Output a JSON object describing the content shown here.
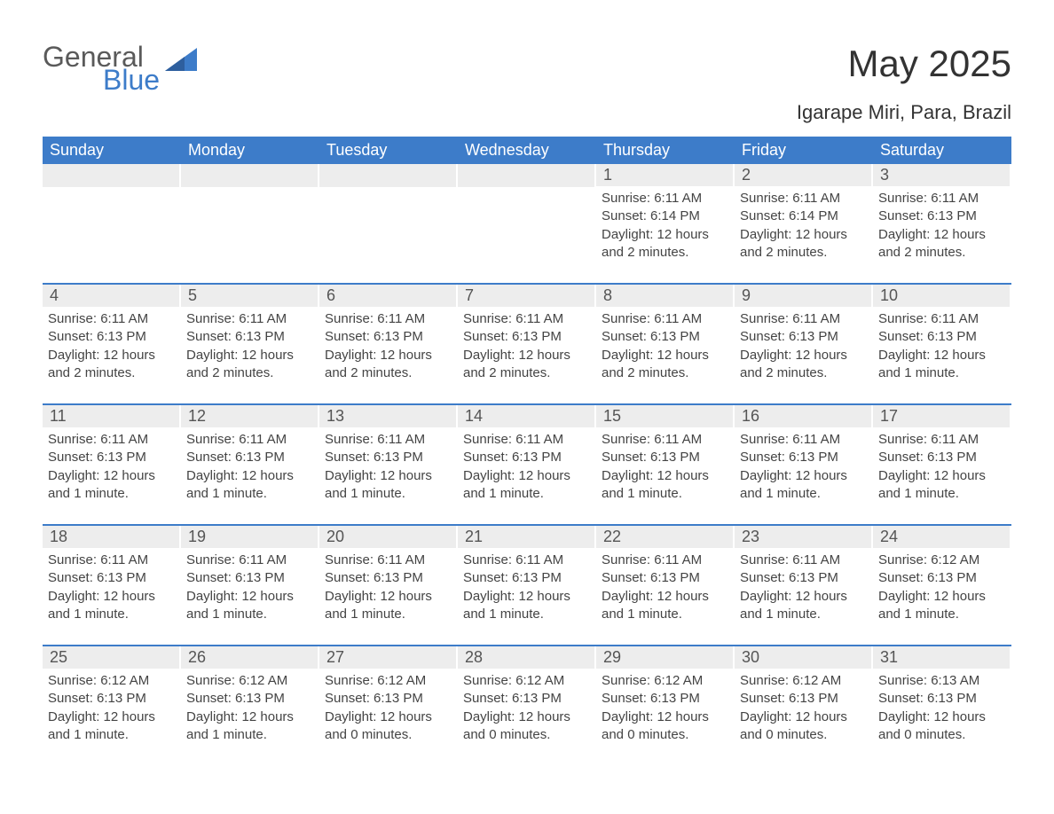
{
  "logo": {
    "word1": "General",
    "word2": "Blue"
  },
  "title": "May 2025",
  "subtitle": "Igarape Miri, Para, Brazil",
  "colors": {
    "header_bg": "#3d7cc9",
    "header_text": "#ffffff",
    "daynum_bg": "#ededed",
    "border": "#3d7cc9",
    "body_text": "#444444",
    "title_text": "#333333",
    "logo_gray": "#5a5a5a",
    "logo_blue": "#3d7cc9",
    "page_bg": "#ffffff"
  },
  "fonts": {
    "title_pt": 42,
    "subtitle_pt": 22,
    "weekday_pt": 18,
    "daynum_pt": 18,
    "body_pt": 15,
    "logo_pt": 32
  },
  "weekdays": [
    "Sunday",
    "Monday",
    "Tuesday",
    "Wednesday",
    "Thursday",
    "Friday",
    "Saturday"
  ],
  "label_sunrise": "Sunrise:",
  "label_sunset": "Sunset:",
  "label_daylight": "Daylight:",
  "weeks": [
    [
      {
        "blank": true
      },
      {
        "blank": true
      },
      {
        "blank": true
      },
      {
        "blank": true
      },
      {
        "num": "1",
        "sunrise": "6:11 AM",
        "sunset": "6:14 PM",
        "daylight": "12 hours and 2 minutes."
      },
      {
        "num": "2",
        "sunrise": "6:11 AM",
        "sunset": "6:14 PM",
        "daylight": "12 hours and 2 minutes."
      },
      {
        "num": "3",
        "sunrise": "6:11 AM",
        "sunset": "6:13 PM",
        "daylight": "12 hours and 2 minutes."
      }
    ],
    [
      {
        "num": "4",
        "sunrise": "6:11 AM",
        "sunset": "6:13 PM",
        "daylight": "12 hours and 2 minutes."
      },
      {
        "num": "5",
        "sunrise": "6:11 AM",
        "sunset": "6:13 PM",
        "daylight": "12 hours and 2 minutes."
      },
      {
        "num": "6",
        "sunrise": "6:11 AM",
        "sunset": "6:13 PM",
        "daylight": "12 hours and 2 minutes."
      },
      {
        "num": "7",
        "sunrise": "6:11 AM",
        "sunset": "6:13 PM",
        "daylight": "12 hours and 2 minutes."
      },
      {
        "num": "8",
        "sunrise": "6:11 AM",
        "sunset": "6:13 PM",
        "daylight": "12 hours and 2 minutes."
      },
      {
        "num": "9",
        "sunrise": "6:11 AM",
        "sunset": "6:13 PM",
        "daylight": "12 hours and 2 minutes."
      },
      {
        "num": "10",
        "sunrise": "6:11 AM",
        "sunset": "6:13 PM",
        "daylight": "12 hours and 1 minute."
      }
    ],
    [
      {
        "num": "11",
        "sunrise": "6:11 AM",
        "sunset": "6:13 PM",
        "daylight": "12 hours and 1 minute."
      },
      {
        "num": "12",
        "sunrise": "6:11 AM",
        "sunset": "6:13 PM",
        "daylight": "12 hours and 1 minute."
      },
      {
        "num": "13",
        "sunrise": "6:11 AM",
        "sunset": "6:13 PM",
        "daylight": "12 hours and 1 minute."
      },
      {
        "num": "14",
        "sunrise": "6:11 AM",
        "sunset": "6:13 PM",
        "daylight": "12 hours and 1 minute."
      },
      {
        "num": "15",
        "sunrise": "6:11 AM",
        "sunset": "6:13 PM",
        "daylight": "12 hours and 1 minute."
      },
      {
        "num": "16",
        "sunrise": "6:11 AM",
        "sunset": "6:13 PM",
        "daylight": "12 hours and 1 minute."
      },
      {
        "num": "17",
        "sunrise": "6:11 AM",
        "sunset": "6:13 PM",
        "daylight": "12 hours and 1 minute."
      }
    ],
    [
      {
        "num": "18",
        "sunrise": "6:11 AM",
        "sunset": "6:13 PM",
        "daylight": "12 hours and 1 minute."
      },
      {
        "num": "19",
        "sunrise": "6:11 AM",
        "sunset": "6:13 PM",
        "daylight": "12 hours and 1 minute."
      },
      {
        "num": "20",
        "sunrise": "6:11 AM",
        "sunset": "6:13 PM",
        "daylight": "12 hours and 1 minute."
      },
      {
        "num": "21",
        "sunrise": "6:11 AM",
        "sunset": "6:13 PM",
        "daylight": "12 hours and 1 minute."
      },
      {
        "num": "22",
        "sunrise": "6:11 AM",
        "sunset": "6:13 PM",
        "daylight": "12 hours and 1 minute."
      },
      {
        "num": "23",
        "sunrise": "6:11 AM",
        "sunset": "6:13 PM",
        "daylight": "12 hours and 1 minute."
      },
      {
        "num": "24",
        "sunrise": "6:12 AM",
        "sunset": "6:13 PM",
        "daylight": "12 hours and 1 minute."
      }
    ],
    [
      {
        "num": "25",
        "sunrise": "6:12 AM",
        "sunset": "6:13 PM",
        "daylight": "12 hours and 1 minute."
      },
      {
        "num": "26",
        "sunrise": "6:12 AM",
        "sunset": "6:13 PM",
        "daylight": "12 hours and 1 minute."
      },
      {
        "num": "27",
        "sunrise": "6:12 AM",
        "sunset": "6:13 PM",
        "daylight": "12 hours and 0 minutes."
      },
      {
        "num": "28",
        "sunrise": "6:12 AM",
        "sunset": "6:13 PM",
        "daylight": "12 hours and 0 minutes."
      },
      {
        "num": "29",
        "sunrise": "6:12 AM",
        "sunset": "6:13 PM",
        "daylight": "12 hours and 0 minutes."
      },
      {
        "num": "30",
        "sunrise": "6:12 AM",
        "sunset": "6:13 PM",
        "daylight": "12 hours and 0 minutes."
      },
      {
        "num": "31",
        "sunrise": "6:13 AM",
        "sunset": "6:13 PM",
        "daylight": "12 hours and 0 minutes."
      }
    ]
  ]
}
